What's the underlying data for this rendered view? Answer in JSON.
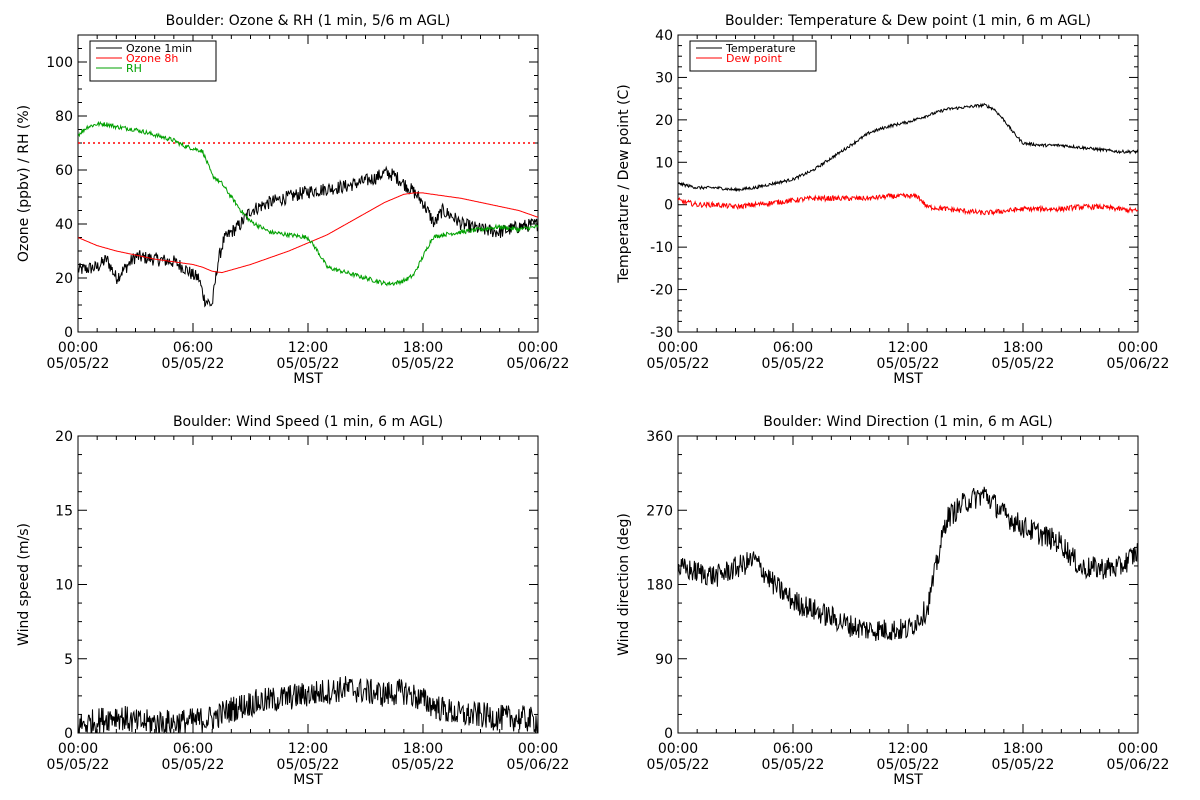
{
  "chart_data": [
    {
      "type": "line",
      "title": "Boulder: Ozone & RH (1 min, 5/6 m AGL)",
      "xlabel": "MST",
      "ylabel": "Ozone (ppbv) / RH (%)",
      "ylim": [
        0,
        110
      ],
      "yticks": [
        "0",
        "20",
        "40",
        "60",
        "80",
        "100"
      ],
      "xlim_hours": [
        0,
        24
      ],
      "xtick_times": [
        "00:00",
        "06:00",
        "12:00",
        "18:00",
        "00:00"
      ],
      "xtick_dates": [
        "05/05/22",
        "05/05/22",
        "05/05/22",
        "05/05/22",
        "05/06/22"
      ],
      "legend_position": "top-left",
      "reference_line": {
        "y": 70,
        "color": "#ff0000",
        "style": "dotted"
      },
      "series": [
        {
          "name": "Ozone 1min",
          "color": "#000000",
          "noise": 2.5,
          "x": [
            0,
            1,
            1.5,
            2,
            2.5,
            3,
            4,
            5,
            5.5,
            6,
            6.3,
            6.6,
            7,
            7.3,
            7.6,
            8,
            8.5,
            9,
            10,
            11,
            12,
            13,
            14,
            15,
            15.5,
            16,
            16.5,
            17,
            17.5,
            18,
            18.3,
            18.6,
            19,
            19.5,
            20,
            21,
            22,
            23,
            24
          ],
          "y": [
            23,
            24,
            27,
            20,
            24,
            28,
            27,
            26,
            24,
            21,
            20,
            12,
            10,
            26,
            34,
            37,
            40,
            45,
            48,
            50,
            52,
            53,
            54,
            56,
            57,
            59,
            58,
            55,
            52,
            48,
            44,
            40,
            45,
            43,
            40,
            38,
            37,
            39,
            40
          ]
        },
        {
          "name": "Ozone 8h",
          "color": "#ff0000",
          "noise": 0,
          "x": [
            0,
            1,
            2,
            3,
            4,
            5,
            6,
            6.5,
            7,
            7.5,
            8,
            9,
            10,
            11,
            12,
            13,
            14,
            15,
            16,
            17,
            17.5,
            18,
            19,
            20,
            21,
            22,
            23,
            24
          ],
          "y": [
            35,
            32,
            30,
            28.5,
            27,
            26,
            25,
            24,
            22.5,
            22,
            23,
            25,
            27.5,
            30,
            33,
            36,
            40,
            44,
            48,
            51,
            51.5,
            51.5,
            50.5,
            49.5,
            48,
            46.5,
            45,
            42.5
          ]
        },
        {
          "name": "RH",
          "color": "#00a000",
          "noise": 0.8,
          "x": [
            0,
            0.5,
            1,
            1.5,
            2,
            3,
            4,
            5,
            5.5,
            6,
            6.5,
            7,
            7.5,
            8,
            8.5,
            9,
            9.5,
            10,
            11,
            12,
            12.5,
            13,
            13.5,
            14,
            15,
            16,
            16.5,
            17,
            17.5,
            18,
            18.5,
            19,
            20,
            21,
            22,
            23,
            24
          ],
          "y": [
            73,
            76,
            77,
            77,
            76,
            75,
            73,
            71,
            69,
            68,
            67,
            58,
            55,
            50,
            45,
            41,
            39,
            37,
            36,
            35,
            30,
            24,
            23,
            22,
            20,
            18,
            18,
            19,
            21,
            28,
            35,
            36,
            37,
            38,
            39,
            38,
            39
          ]
        }
      ]
    },
    {
      "type": "line",
      "title": "Boulder: Temperature & Dew point (1 min, 6 m AGL)",
      "xlabel": "MST",
      "ylabel": "Temperature / Dew point (C)",
      "ylim": [
        -30,
        40
      ],
      "yticks": [
        "-30",
        "-20",
        "-10",
        "0",
        "10",
        "20",
        "30",
        "40"
      ],
      "xlim_hours": [
        0,
        24
      ],
      "xtick_times": [
        "00:00",
        "06:00",
        "12:00",
        "18:00",
        "00:00"
      ],
      "xtick_dates": [
        "05/05/22",
        "05/05/22",
        "05/05/22",
        "05/05/22",
        "05/06/22"
      ],
      "legend_position": "top-left",
      "series": [
        {
          "name": "Temperature",
          "color": "#000000",
          "noise": 0.35,
          "x": [
            0,
            1,
            2,
            3,
            4,
            5,
            6,
            7,
            8,
            9,
            10,
            11,
            12,
            13,
            14,
            15,
            16,
            16.5,
            17,
            17.5,
            18,
            19,
            20,
            21,
            22,
            23,
            24
          ],
          "y": [
            5,
            4,
            4,
            3.5,
            4,
            5,
            6,
            8,
            11,
            14,
            17,
            18.5,
            19.5,
            21,
            22.5,
            23,
            23.5,
            22.5,
            20,
            17,
            14.5,
            14,
            14,
            13.5,
            13,
            12.5,
            12.5
          ]
        },
        {
          "name": "Dew point",
          "color": "#ff0000",
          "noise": 0.6,
          "x": [
            0,
            1,
            2,
            3,
            4,
            5,
            6,
            7,
            8,
            9,
            10,
            11,
            12,
            12.5,
            13,
            14,
            15,
            16,
            17,
            18,
            19,
            20,
            21,
            22,
            23,
            24
          ],
          "y": [
            1,
            0,
            0,
            -0.5,
            0,
            0.5,
            1,
            1.5,
            1.5,
            1.5,
            1.5,
            2,
            2,
            2,
            -0.5,
            -1,
            -1.5,
            -2,
            -1.5,
            -1,
            -1,
            -1,
            -0.5,
            -0.5,
            -1,
            -1.5
          ]
        }
      ]
    },
    {
      "type": "line",
      "title": "Boulder: Wind Speed (1 min, 6 m AGL)",
      "xlabel": "MST",
      "ylabel": "Wind speed (m/s)",
      "ylim": [
        0,
        20
      ],
      "yticks": [
        "0",
        "5",
        "10",
        "15",
        "20"
      ],
      "xlim_hours": [
        0,
        24
      ],
      "xtick_times": [
        "00:00",
        "06:00",
        "12:00",
        "18:00",
        "00:00"
      ],
      "xtick_dates": [
        "05/05/22",
        "05/05/22",
        "05/05/22",
        "05/05/22",
        "05/06/22"
      ],
      "series": [
        {
          "name": "",
          "color": "#000000",
          "noise": 0.9,
          "floor": 0,
          "x": [
            0,
            1,
            2,
            3,
            4,
            5,
            6,
            7,
            8,
            9,
            10,
            11,
            12,
            13,
            14,
            15,
            16,
            17,
            18,
            19,
            20,
            21,
            22,
            23,
            24
          ],
          "y": [
            0.5,
            0.8,
            1.2,
            0.7,
            0.7,
            0.7,
            0.8,
            1,
            1.6,
            2,
            2.2,
            2.4,
            2.6,
            2.8,
            3,
            2.8,
            2.6,
            2.8,
            2.2,
            1.6,
            1.2,
            1.2,
            1,
            1,
            0.8
          ]
        }
      ]
    },
    {
      "type": "line",
      "title": "Boulder: Wind Direction (1 min, 6 m AGL)",
      "xlabel": "MST",
      "ylabel": "Wind direction (deg)",
      "ylim": [
        0,
        360
      ],
      "yticks": [
        "0",
        "90",
        "180",
        "270",
        "360"
      ],
      "xlim_hours": [
        0,
        24
      ],
      "xtick_times": [
        "00:00",
        "06:00",
        "12:00",
        "18:00",
        "00:00"
      ],
      "xtick_dates": [
        "05/05/22",
        "05/05/22",
        "05/05/22",
        "05/05/22",
        "05/06/22"
      ],
      "series": [
        {
          "name": "",
          "color": "#000000",
          "noise": 14,
          "floor": 0,
          "ceil": 360,
          "x": [
            0,
            1,
            2,
            3,
            4,
            5,
            6,
            7,
            8,
            9,
            10,
            11,
            12,
            13,
            14,
            15,
            16,
            17,
            18,
            19,
            20,
            21,
            22,
            23,
            24
          ],
          "y": [
            200,
            195,
            190,
            200,
            210,
            180,
            160,
            150,
            140,
            130,
            125,
            125,
            125,
            150,
            260,
            280,
            290,
            265,
            250,
            240,
            230,
            200,
            200,
            200,
            220
          ]
        }
      ]
    }
  ]
}
